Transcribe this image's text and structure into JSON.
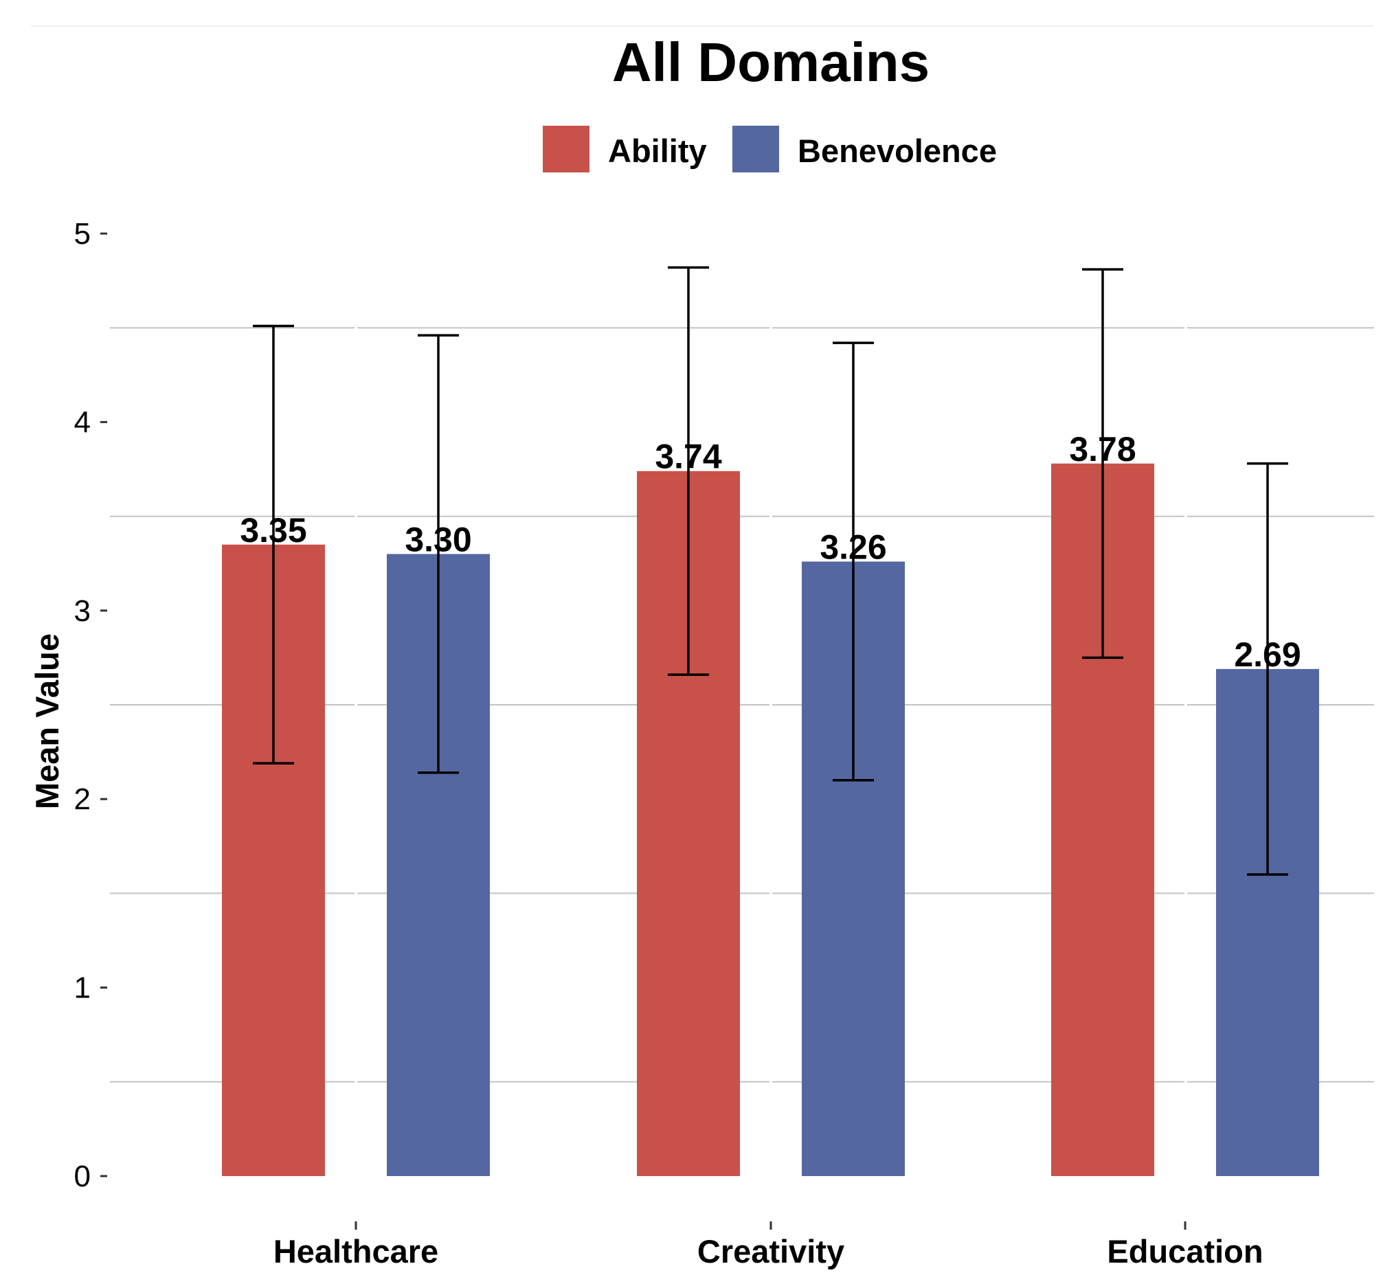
{
  "chart_data": {
    "type": "bar",
    "title": "All Domains",
    "xlabel": "",
    "ylabel": "Mean Value",
    "categories": [
      "Healthcare",
      "Creativity",
      "Education"
    ],
    "series": [
      {
        "name": "Ability",
        "color": "#c8524a",
        "values": [
          3.35,
          3.74,
          3.78
        ],
        "labels": [
          "3.35",
          "3.74",
          "3.78"
        ],
        "error_low": [
          2.19,
          2.66,
          2.75
        ],
        "error_high": [
          4.51,
          4.82,
          4.81
        ]
      },
      {
        "name": "Benevolence",
        "color": "#5567a0",
        "values": [
          3.3,
          3.26,
          2.69
        ],
        "labels": [
          "3.30",
          "3.26",
          "2.69"
        ],
        "error_low": [
          2.14,
          2.1,
          1.6
        ],
        "error_high": [
          4.46,
          4.42,
          3.78
        ]
      }
    ],
    "ylim": [
      0,
      5
    ],
    "yticks": [
      0,
      1,
      2,
      3,
      4,
      5
    ],
    "ytick_labels": [
      "0",
      "1",
      "2",
      "3",
      "4",
      "5"
    ],
    "grid": true,
    "legend_position": "top"
  }
}
